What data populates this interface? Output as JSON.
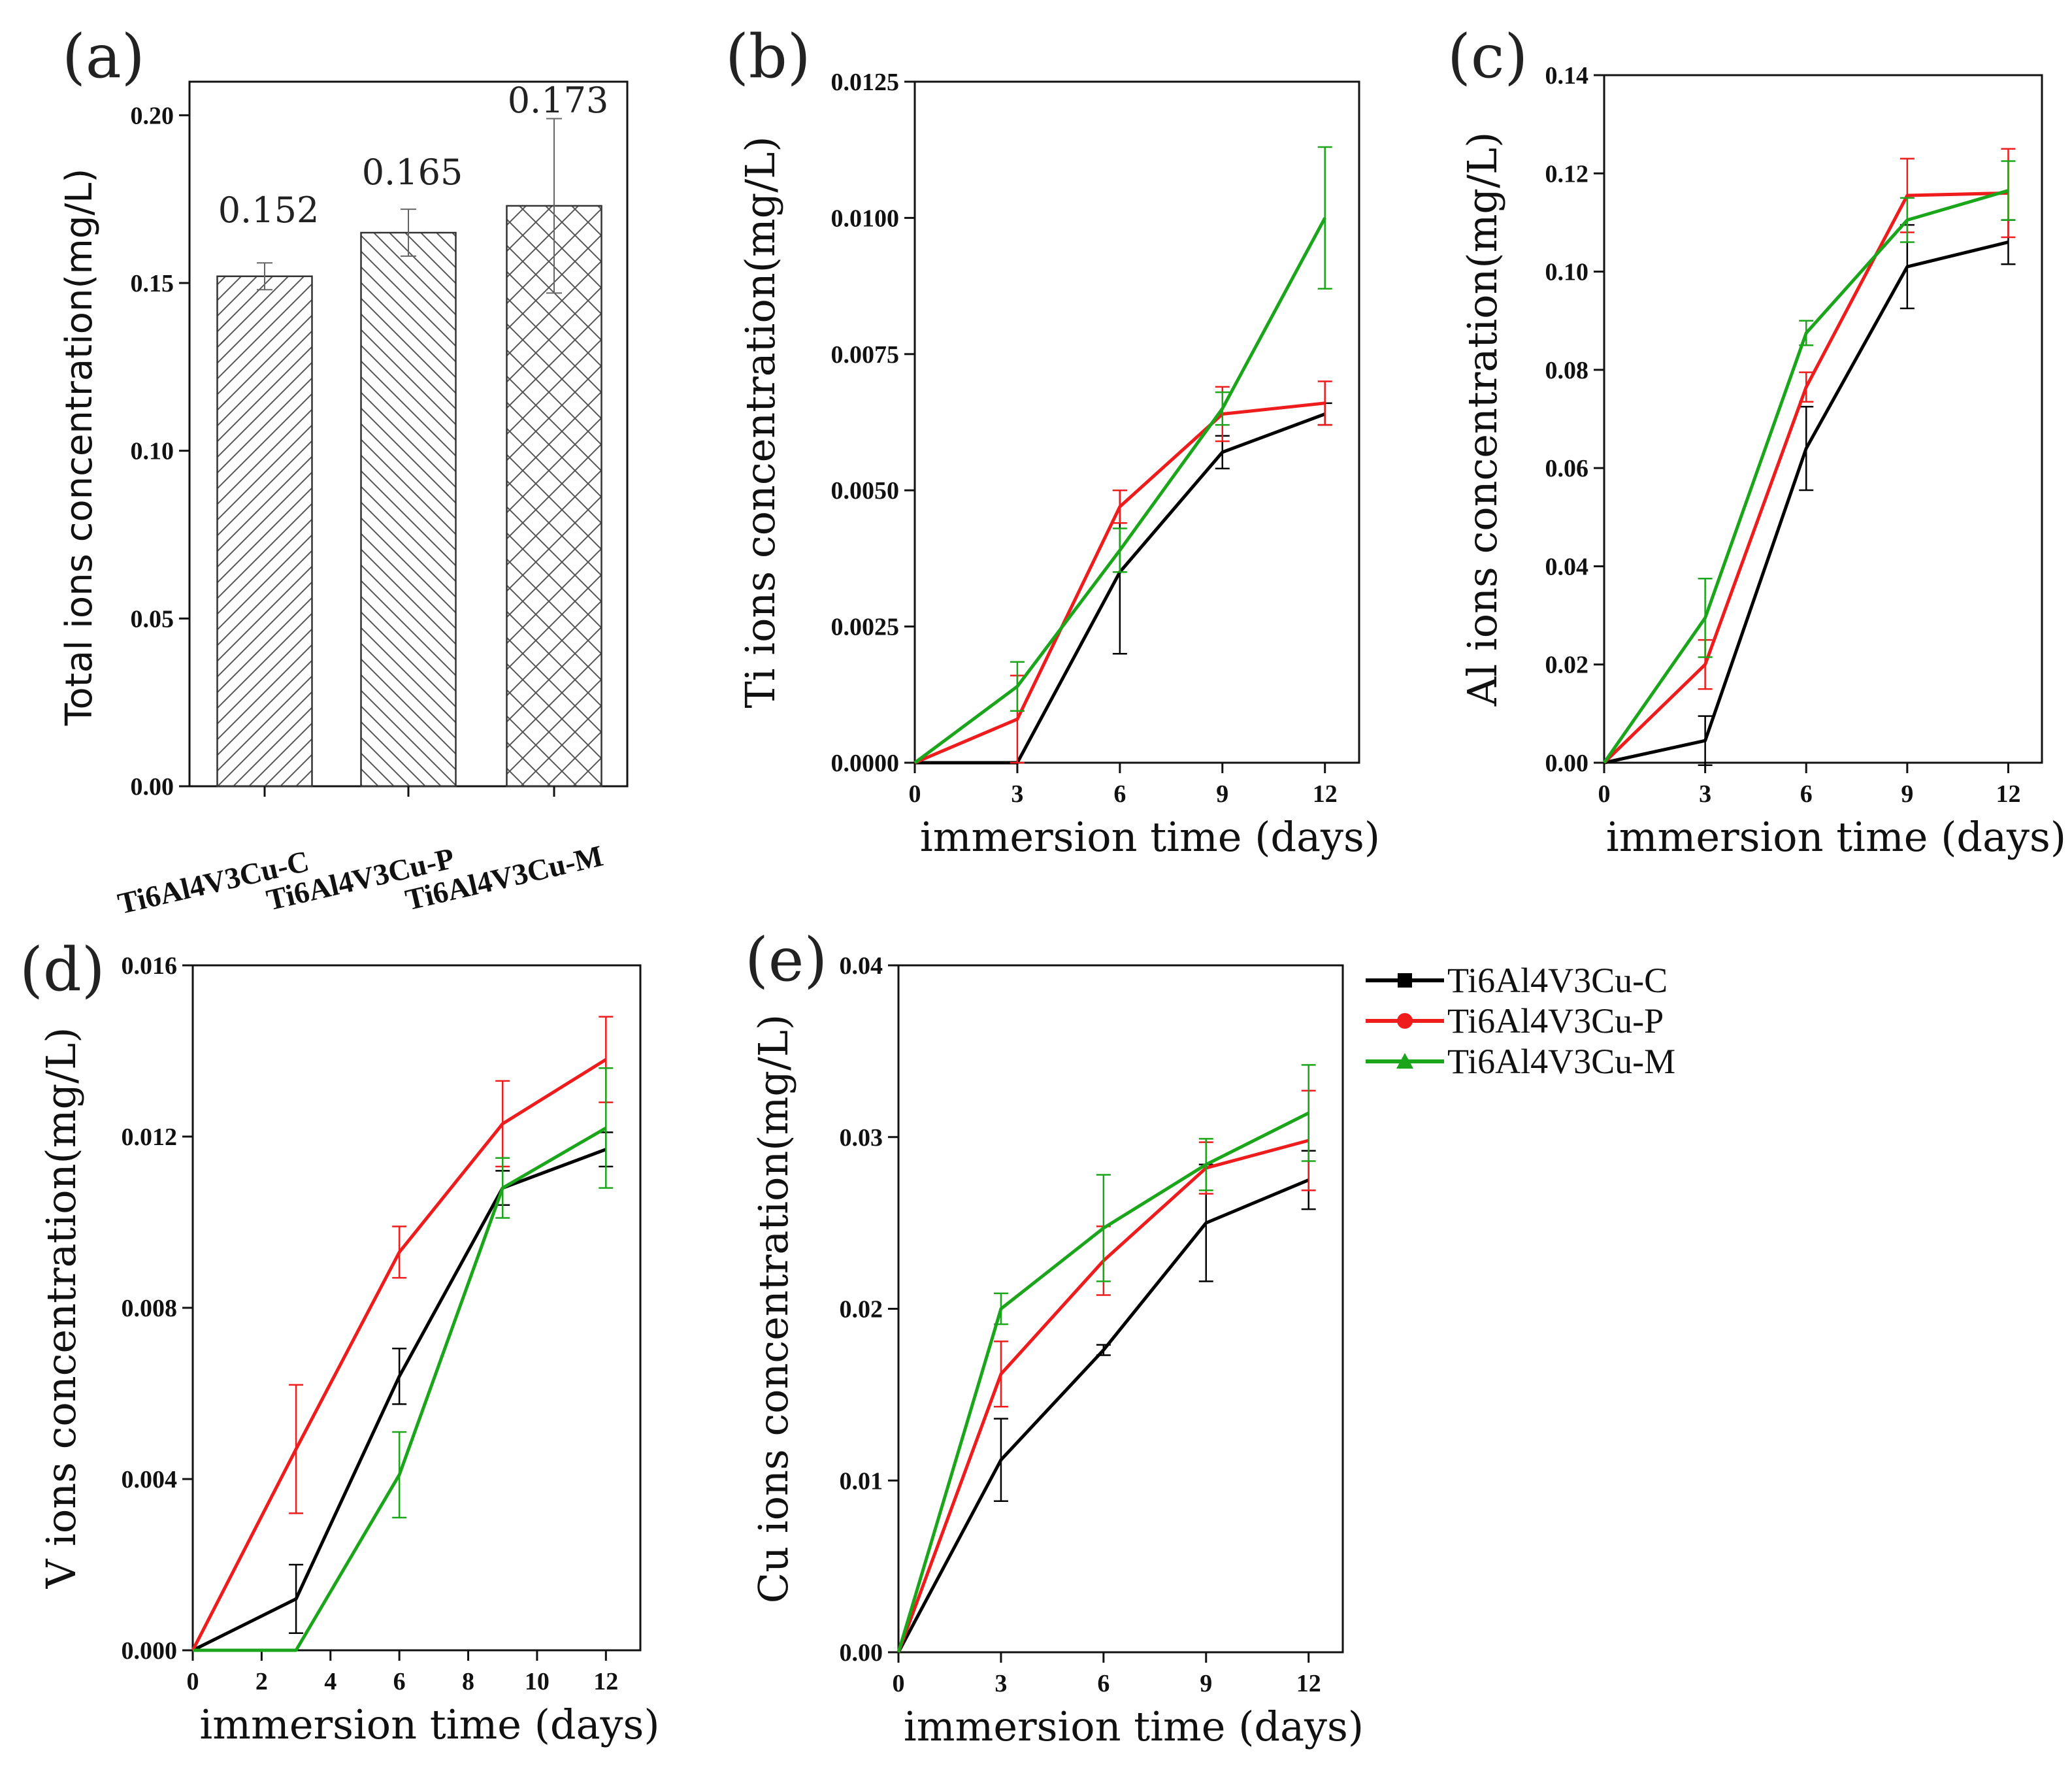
{
  "chart_data": [
    {
      "panel": "(a)",
      "type": "bar",
      "categories": [
        "Ti6Al4V3Cu-C",
        "Ti6Al4V3Cu-P",
        "Ti6Al4V3Cu-M"
      ],
      "values": [
        0.152,
        0.165,
        0.173
      ],
      "value_labels": [
        "0.152",
        "0.165",
        "0.173"
      ],
      "errors": [
        0.004,
        0.007,
        0.026
      ],
      "ylabel": "Total ions concentration(mg/L)",
      "ylim": [
        0,
        0.21
      ],
      "yticks": [
        0,
        0.05,
        0.1,
        0.15,
        0.2
      ],
      "ytick_labels": [
        "0.00",
        "0.05",
        "0.10",
        "0.15",
        "0.20"
      ],
      "patterns": [
        "diagonal",
        "antidiagonal",
        "crosshatch"
      ]
    },
    {
      "panel": "(b)",
      "type": "line",
      "x": [
        0,
        3,
        6,
        9,
        12
      ],
      "xlim": [
        0,
        13
      ],
      "xticks": [
        0,
        3,
        6,
        9,
        12
      ],
      "xtick_labels": [
        "0",
        "3",
        "6",
        "9",
        "12"
      ],
      "ylim": [
        0,
        0.0125
      ],
      "yticks": [
        0,
        0.0025,
        0.005,
        0.0075,
        0.01,
        0.0125
      ],
      "ytick_labels": [
        "0.0000",
        "0.0025",
        "0.0050",
        "0.0075",
        "0.0100",
        "0.0125"
      ],
      "xlabel": "immersion time (days)",
      "ylabel": "Ti ions concentration(mg/L)",
      "series": [
        {
          "name": "Ti6Al4V3Cu-C",
          "color": "#000000",
          "values": [
            0,
            0,
            0.0035,
            0.0057,
            0.0064
          ],
          "errors": [
            0,
            0,
            0.0015,
            0.0003,
            0.0002
          ]
        },
        {
          "name": "Ti6Al4V3Cu-P",
          "color": "#ee1c1c",
          "values": [
            0,
            0.0008,
            0.0047,
            0.0064,
            0.0066
          ],
          "errors": [
            0,
            0.0008,
            0.0003,
            0.0005,
            0.0004
          ]
        },
        {
          "name": "Ti6Al4V3Cu-M",
          "color": "#1aa51a",
          "values": [
            0,
            0.0014,
            0.0039,
            0.0065,
            0.01
          ],
          "errors": [
            0,
            0.00045,
            0.0004,
            0.0003,
            0.0013
          ]
        }
      ]
    },
    {
      "panel": "(c)",
      "type": "line",
      "x": [
        0,
        3,
        6,
        9,
        12
      ],
      "xlim": [
        0,
        13
      ],
      "xticks": [
        0,
        3,
        6,
        9,
        12
      ],
      "xtick_labels": [
        "0",
        "3",
        "6",
        "9",
        "12"
      ],
      "ylim": [
        0,
        0.14
      ],
      "yticks": [
        0,
        0.02,
        0.04,
        0.06,
        0.08,
        0.1,
        0.12,
        0.14
      ],
      "ytick_labels": [
        "0.00",
        "0.02",
        "0.04",
        "0.06",
        "0.08",
        "0.10",
        "0.12",
        "0.14"
      ],
      "xlabel": "immersion time (days)",
      "ylabel": "Al ions concentration(mg/L)",
      "series": [
        {
          "name": "Ti6Al4V3Cu-C",
          "color": "#000000",
          "values": [
            0,
            0.0045,
            0.064,
            0.101,
            0.106
          ],
          "errors": [
            0,
            0.005,
            0.0085,
            0.0085,
            0.0045
          ]
        },
        {
          "name": "Ti6Al4V3Cu-P",
          "color": "#ee1c1c",
          "values": [
            0,
            0.02,
            0.0765,
            0.1155,
            0.116
          ],
          "errors": [
            0,
            0.005,
            0.003,
            0.0075,
            0.009
          ]
        },
        {
          "name": "Ti6Al4V3Cu-M",
          "color": "#1aa51a",
          "values": [
            0,
            0.0295,
            0.0875,
            0.1105,
            0.1165
          ],
          "errors": [
            0,
            0.008,
            0.0025,
            0.0045,
            0.006
          ]
        }
      ]
    },
    {
      "panel": "(d)",
      "type": "line",
      "x": [
        0,
        3,
        6,
        9,
        12
      ],
      "xlim": [
        0,
        13
      ],
      "xticks": [
        0,
        2,
        4,
        6,
        8,
        10,
        12
      ],
      "xtick_labels": [
        "0",
        "2",
        "4",
        "6",
        "8",
        "10",
        "12"
      ],
      "ylim": [
        0,
        0.016
      ],
      "yticks": [
        0,
        0.004,
        0.008,
        0.012,
        0.016
      ],
      "ytick_labels": [
        "0.000",
        "0.004",
        "0.008",
        "0.012",
        "0.016"
      ],
      "xlabel": "immersion time (days)",
      "ylabel": "V ions concentration(mg/L)",
      "series": [
        {
          "name": "Ti6Al4V3Cu-C",
          "color": "#000000",
          "values": [
            0,
            0.0012,
            0.0064,
            0.0108,
            0.0117
          ],
          "errors": [
            0,
            0.0008,
            0.00065,
            0.0004,
            0.0004
          ]
        },
        {
          "name": "Ti6Al4V3Cu-P",
          "color": "#ee1c1c",
          "values": [
            0,
            0.0047,
            0.0093,
            0.0123,
            0.0138
          ],
          "errors": [
            0,
            0.0015,
            0.0006,
            0.001,
            0.001
          ]
        },
        {
          "name": "Ti6Al4V3Cu-M",
          "color": "#1aa51a",
          "values": [
            0,
            0,
            0.0041,
            0.0108,
            0.0122
          ],
          "errors": [
            0,
            0,
            0.001,
            0.0007,
            0.0014
          ]
        }
      ]
    },
    {
      "panel": "(e)",
      "type": "line",
      "x": [
        0,
        3,
        6,
        9,
        12
      ],
      "xlim": [
        0,
        13
      ],
      "xticks": [
        0,
        3,
        6,
        9,
        12
      ],
      "xtick_labels": [
        "0",
        "3",
        "6",
        "9",
        "12"
      ],
      "ylim": [
        0,
        0.04
      ],
      "yticks": [
        0,
        0.01,
        0.02,
        0.03,
        0.04
      ],
      "ytick_labels": [
        "0.00",
        "0.01",
        "0.02",
        "0.03",
        "0.04"
      ],
      "xlabel": "immersion time (days)",
      "ylabel": "Cu ions concentration(mg/L)",
      "series": [
        {
          "name": "Ti6Al4V3Cu-C",
          "color": "#000000",
          "values": [
            0,
            0.0112,
            0.0176,
            0.025,
            0.0275
          ],
          "errors": [
            0,
            0.0024,
            0.0003,
            0.0034,
            0.0017
          ]
        },
        {
          "name": "Ti6Al4V3Cu-P",
          "color": "#ee1c1c",
          "values": [
            0,
            0.0162,
            0.0228,
            0.0282,
            0.0298
          ],
          "errors": [
            0,
            0.0019,
            0.002,
            0.0015,
            0.0029
          ]
        },
        {
          "name": "Ti6Al4V3Cu-M",
          "color": "#1aa51a",
          "values": [
            0,
            0.02,
            0.0247,
            0.0284,
            0.0314
          ],
          "errors": [
            0,
            0.0009,
            0.0031,
            0.0015,
            0.0028
          ]
        }
      ]
    }
  ],
  "legend": {
    "items": [
      {
        "label": "Ti6Al4V3Cu-C",
        "color": "#000000",
        "marker": "square"
      },
      {
        "label": "Ti6Al4V3Cu-P",
        "color": "#ee1c1c",
        "marker": "circle"
      },
      {
        "label": "Ti6Al4V3Cu-M",
        "color": "#1aa51a",
        "marker": "triangle"
      }
    ]
  }
}
